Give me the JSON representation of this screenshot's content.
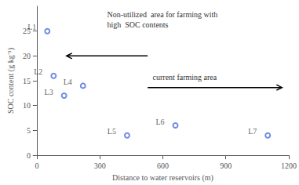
{
  "chart_data": {
    "type": "scatter",
    "x": [
      50,
      80,
      130,
      220,
      430,
      660,
      1100
    ],
    "values": [
      25,
      16,
      12,
      14,
      4,
      6,
      4
    ],
    "labels": [
      "L1",
      "L2",
      "L3",
      "L4",
      "L5",
      "L6",
      "L7"
    ],
    "marker": "circle",
    "data_labels": true,
    "xlabel": "Distance to water reservoirs (m)",
    "ylabel": "SOC content (g kg⁻¹)",
    "xlim": [
      0,
      1200
    ],
    "ylim": [
      0,
      30
    ],
    "xticks": [
      0,
      300,
      600,
      900,
      1200
    ],
    "yticks": [
      0,
      5,
      10,
      15,
      20,
      25
    ],
    "grid": false,
    "annotations": [
      "Non-utilized  area for farming with\nhigh  SOC contents",
      "current farming area"
    ]
  }
}
